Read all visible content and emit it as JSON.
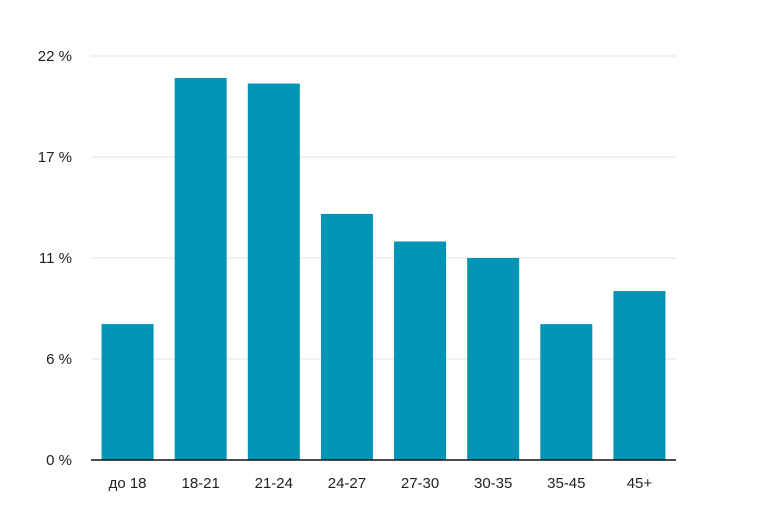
{
  "chart_data": {
    "type": "bar",
    "title": "",
    "xlabel": "",
    "ylabel": "",
    "categories": [
      "до 18",
      "18-21",
      "21-24",
      "24-27",
      "27-30",
      "30-35",
      "35-45",
      "45+"
    ],
    "values": [
      7.4,
      20.8,
      20.5,
      13.4,
      11.9,
      11.0,
      7.4,
      9.2
    ],
    "y_ticks": [
      "0 %",
      "6 %",
      "11 %",
      "17 %",
      "22 %"
    ],
    "ylim": [
      0,
      22
    ],
    "grid": true,
    "legend": "none",
    "colors": {
      "bar": "#0094b5",
      "grid": "#e3e3e3",
      "axis": "#111111",
      "text": "#222222"
    }
  }
}
